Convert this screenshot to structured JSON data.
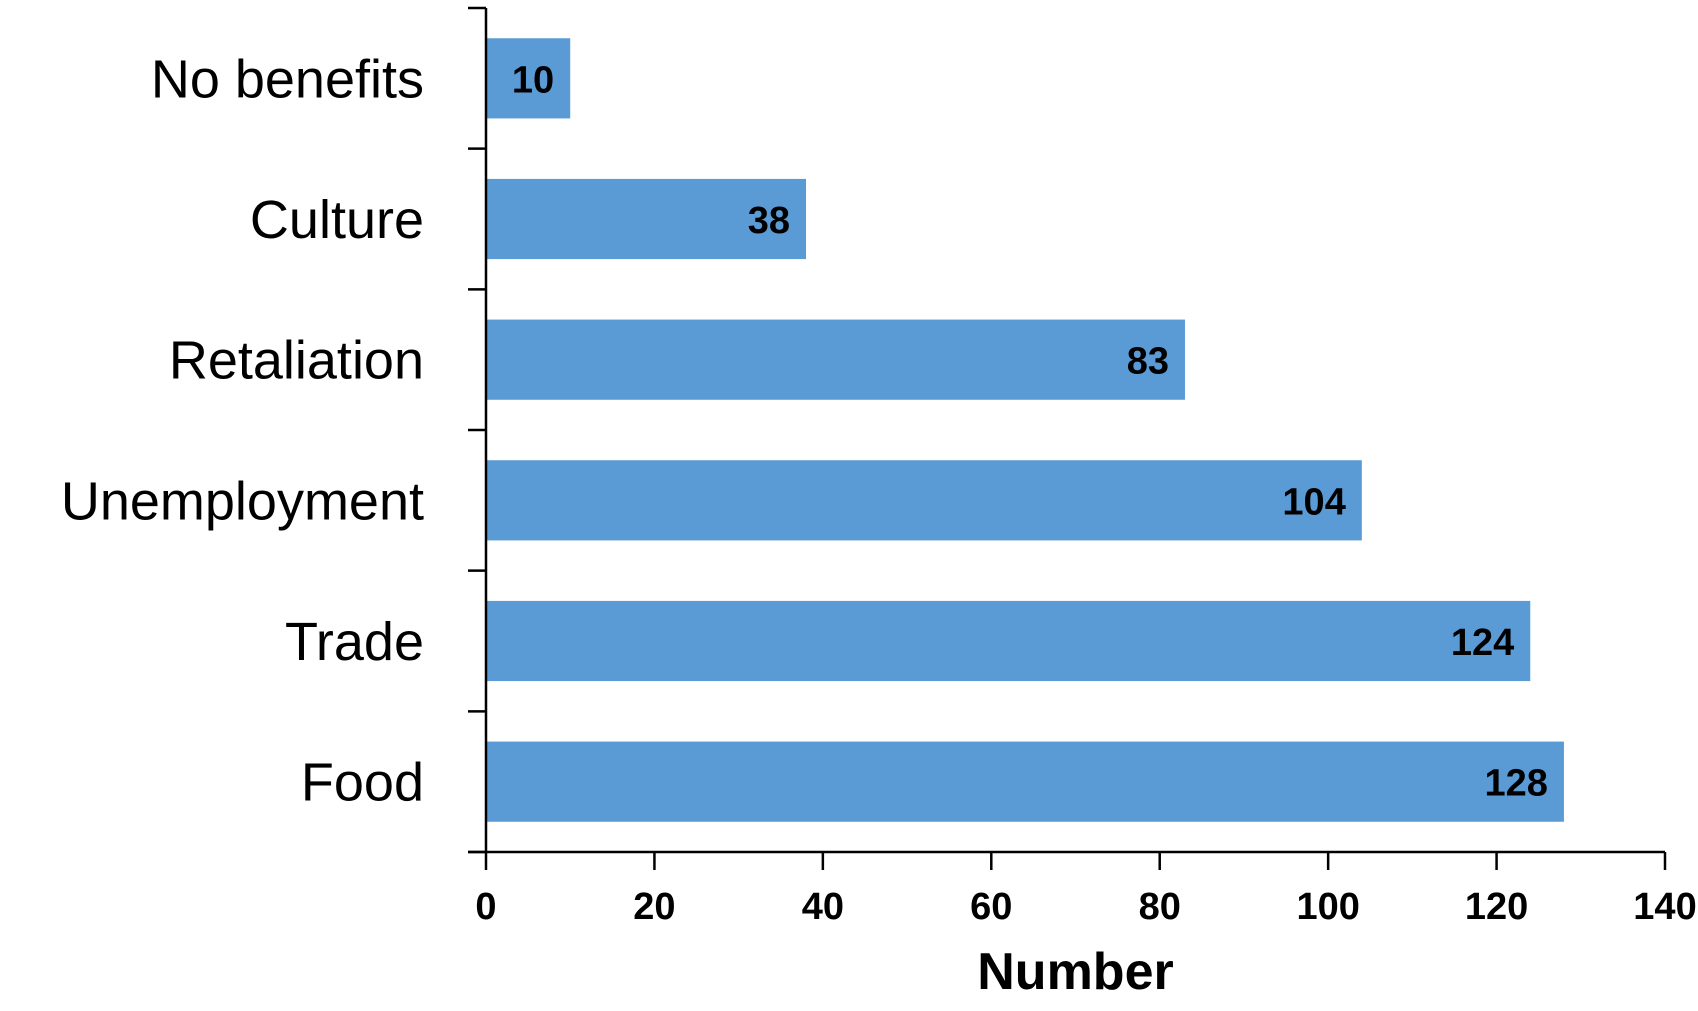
{
  "chart_data": {
    "type": "bar",
    "orientation": "horizontal",
    "categories": [
      "No benefits",
      "Culture",
      "Retaliation",
      "Unemployment",
      "Trade",
      "Food"
    ],
    "values": [
      10,
      38,
      83,
      104,
      124,
      128
    ],
    "title": "",
    "xlabel": "Number",
    "ylabel": "",
    "xlim": [
      0,
      140
    ],
    "x_ticks": [
      "0",
      "20",
      "40",
      "60",
      "80",
      "100",
      "120",
      "140"
    ],
    "data_labels": [
      "10",
      "38",
      "83",
      "104",
      "124",
      "128"
    ],
    "grid": false,
    "legend": "none",
    "bar_color": "#5b9bd5"
  }
}
